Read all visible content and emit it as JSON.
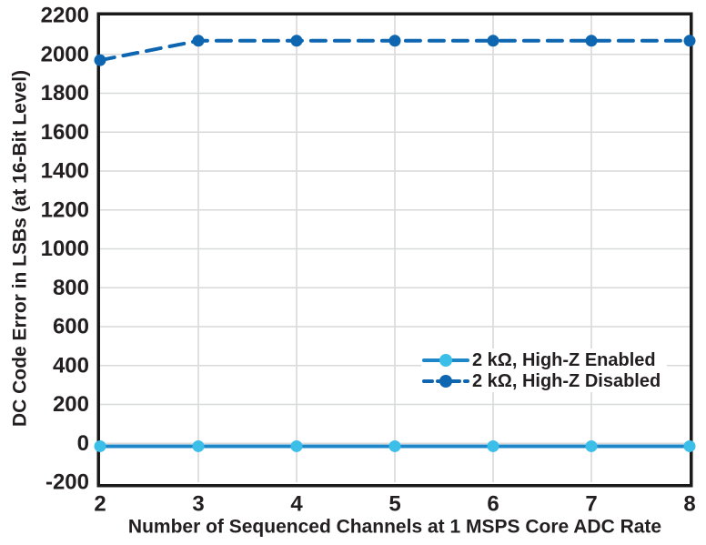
{
  "chart_data": {
    "type": "line",
    "title": "",
    "xlabel": "Number of Sequenced Channels at 1 MSPS Core ADC Rate",
    "ylabel": "DC Code Error in LSBs (at 16-Bit Level)",
    "x": [
      2,
      3,
      4,
      5,
      6,
      7,
      8
    ],
    "xticks": [
      2,
      3,
      4,
      5,
      6,
      7,
      8
    ],
    "yticks": [
      2200,
      2000,
      1800,
      1600,
      1400,
      1200,
      1000,
      800,
      600,
      400,
      200,
      0,
      -200
    ],
    "xlim": [
      2,
      8
    ],
    "ylim": [
      -200,
      2200
    ],
    "grid": true,
    "legend_position": "inside-right-lower-middle",
    "series": [
      {
        "name": "2 kΩ, High-Z Enabled",
        "values": [
          -15,
          -15,
          -15,
          -15,
          -15,
          -15,
          -15
        ],
        "line_style": "solid",
        "line_color": "#1d87c9",
        "marker": "circle",
        "marker_color": "#3bbfe9"
      },
      {
        "name": "2 kΩ, High-Z Disabled",
        "values": [
          1970,
          2070,
          2070,
          2070,
          2070,
          2070,
          2070
        ],
        "line_style": "dashed",
        "line_color": "#0e66b1",
        "marker": "circle",
        "marker_color": "#0e66b1"
      }
    ],
    "colors": {
      "plot_border": "#1a1a1a",
      "gridline": "#d8d9da",
      "text": "#231f20",
      "background": "#ffffff"
    }
  }
}
